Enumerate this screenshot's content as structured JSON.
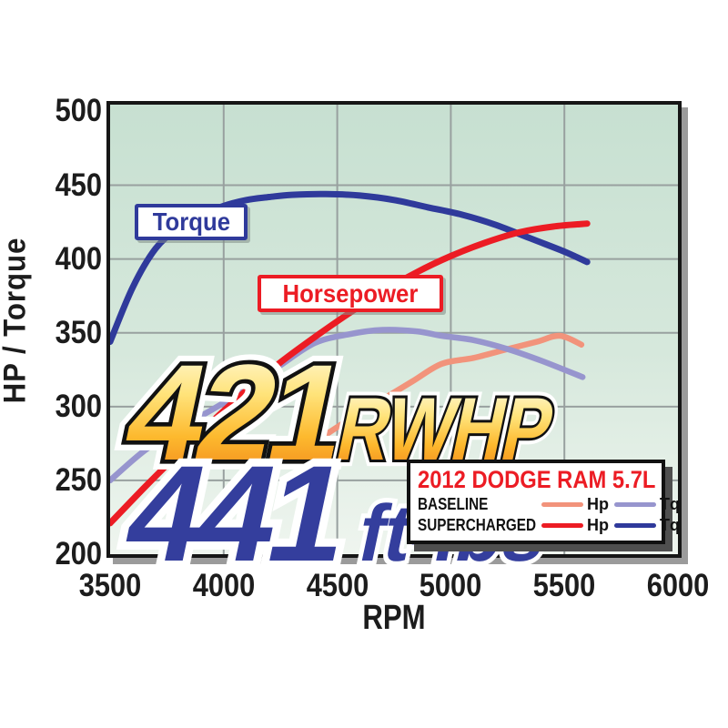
{
  "chart_data": {
    "type": "line",
    "title": "",
    "xlabel": "RPM",
    "ylabel": "HP / Torque",
    "xlim": [
      3500,
      6000
    ],
    "ylim": [
      200,
      504.6
    ],
    "x_ticks": [
      3500,
      4000,
      4500,
      5000,
      5500,
      6000
    ],
    "y_ticks": [
      200,
      250,
      300,
      350,
      400,
      450,
      500
    ],
    "grid": true,
    "legend_position": "bottom-right",
    "series": [
      {
        "id": "baseline-hp",
        "name": "Baseline Hp",
        "color": "#f2937b",
        "stroke_width": 6.5,
        "points": [
          [
            3770,
            200
          ],
          [
            3900,
            217
          ],
          [
            4030,
            232
          ],
          [
            4160,
            249
          ],
          [
            4290,
            265
          ],
          [
            4420,
            278
          ],
          [
            4550,
            291
          ],
          [
            4690,
            304
          ],
          [
            4830,
            317
          ],
          [
            4960,
            329
          ],
          [
            5100,
            333
          ],
          [
            5250,
            339
          ],
          [
            5380,
            344
          ],
          [
            5480,
            348
          ],
          [
            5575,
            342
          ]
        ]
      },
      {
        "id": "baseline-tq",
        "name": "Baseline Tq",
        "color": "#9795ce",
        "stroke_width": 6.5,
        "points": [
          [
            3500,
            250
          ],
          [
            3650,
            270
          ],
          [
            3800,
            285
          ],
          [
            3950,
            298
          ],
          [
            4100,
            312
          ],
          [
            4250,
            328
          ],
          [
            4400,
            343
          ],
          [
            4550,
            349
          ],
          [
            4700,
            352
          ],
          [
            4850,
            351
          ],
          [
            4960,
            348
          ],
          [
            5100,
            345
          ],
          [
            5250,
            339
          ],
          [
            5400,
            331
          ],
          [
            5580,
            320
          ]
        ]
      },
      {
        "id": "supercharged-tq",
        "name": "Supercharged Tq",
        "color": "#2f3a9b",
        "stroke_width": 7,
        "points": [
          [
            3500,
            344
          ],
          [
            3600,
            381
          ],
          [
            3700,
            407
          ],
          [
            3800,
            421
          ],
          [
            3900,
            430
          ],
          [
            4000,
            436
          ],
          [
            4100,
            440
          ],
          [
            4200,
            442
          ],
          [
            4300,
            443.5
          ],
          [
            4450,
            444
          ],
          [
            4600,
            443
          ],
          [
            4750,
            440
          ],
          [
            4900,
            435
          ],
          [
            5050,
            430
          ],
          [
            5200,
            423
          ],
          [
            5350,
            414
          ],
          [
            5500,
            405
          ],
          [
            5600,
            398
          ]
        ]
      },
      {
        "id": "supercharged-hp",
        "name": "Supercharged Hp",
        "color": "#ec1c24",
        "stroke_width": 7,
        "points": [
          [
            3500,
            221
          ],
          [
            3650,
            245
          ],
          [
            3800,
            268
          ],
          [
            3950,
            290
          ],
          [
            4100,
            311
          ],
          [
            4250,
            330
          ],
          [
            4400,
            347
          ],
          [
            4550,
            363
          ],
          [
            4700,
            378
          ],
          [
            4850,
            391
          ],
          [
            5000,
            402
          ],
          [
            5150,
            411
          ],
          [
            5300,
            418
          ],
          [
            5450,
            422
          ],
          [
            5600,
            424
          ]
        ]
      }
    ],
    "annotations": [
      {
        "label": "Torque",
        "color": "#2f3a9b"
      },
      {
        "label": "Horsepower",
        "color": "#ec1c24"
      }
    ]
  },
  "axis": {
    "x_title": "RPM",
    "y_title": "HP / Torque"
  },
  "callouts": {
    "torque_label": "Torque",
    "horsepower_label": "Horsepower"
  },
  "headline": {
    "hp_value": "421",
    "hp_unit": "RWHP",
    "tq_value": "441",
    "tq_unit": "ft-lbs"
  },
  "legend": {
    "title": "2012 DODGE RAM 5.7L",
    "rows": [
      {
        "label": "BASELINE",
        "hp_label": "Hp",
        "tq_label": "Tq",
        "hp_color": "#f2937b",
        "tq_color": "#9795ce"
      },
      {
        "label": "SUPERCHARGED",
        "hp_label": "Hp",
        "tq_label": "Tq",
        "hp_color": "#ec1c24",
        "tq_color": "#2f3a9b"
      }
    ]
  },
  "colors": {
    "page_bg": "#ffffff",
    "plot_bg_top": "#c7e0d1",
    "plot_bg_bottom": "#eff5ef",
    "gridline": "#98a09f",
    "plot_border": "#161616",
    "plot_shadow": "#9b9b9b",
    "legend_shadow": "#4f4f4f",
    "axis_text": "#1c1c1c",
    "headline_gradient_top": "#fffbe2",
    "headline_gradient_bottom": "#ef7d17",
    "headline_tq_color": "#343e9d"
  }
}
